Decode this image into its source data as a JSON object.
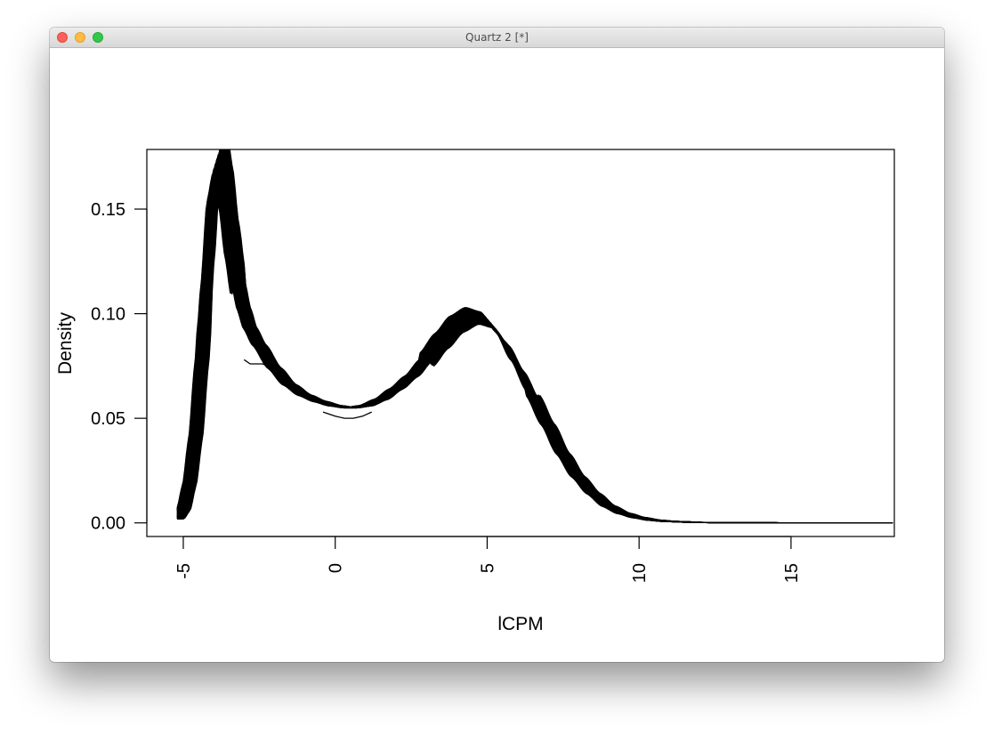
{
  "window": {
    "title": "Quartz 2 [*]",
    "buttons": [
      "close",
      "minimize",
      "zoom"
    ]
  },
  "chart_data": {
    "type": "line",
    "title": "",
    "xlabel": "lCPM",
    "ylabel": "Density",
    "xlim": [
      -6.2,
      18.4
    ],
    "ylim": [
      -0.0065,
      0.1785
    ],
    "x_ticks": [
      "-5",
      "0",
      "5",
      "10",
      "15"
    ],
    "y_ticks": [
      "0.00",
      "0.05",
      "0.10",
      "0.15"
    ],
    "x_tick_values": [
      -5,
      0,
      5,
      10,
      15
    ],
    "y_tick_values": [
      0,
      0.05,
      0.1,
      0.15
    ],
    "grid": false,
    "legend": "none",
    "series_count": 60,
    "line_color": "#000000",
    "x": [
      -5.2,
      -5.0,
      -4.8,
      -4.6,
      -4.4,
      -4.2,
      -4.0,
      -3.8,
      -3.6,
      -3.4,
      -3.2,
      -3.0,
      -2.8,
      -2.5,
      -2.0,
      -1.5,
      -1.0,
      -0.5,
      0.0,
      0.5,
      1.0,
      1.5,
      2.0,
      2.5,
      3.0,
      3.5,
      4.0,
      4.5,
      5.0,
      5.5,
      6.0,
      6.5,
      7.0,
      7.5,
      8.0,
      8.5,
      9.0,
      9.5,
      10.0,
      10.5,
      11.0,
      12.0,
      13.0,
      15.0,
      18.4
    ],
    "y": [
      0.002,
      0.006,
      0.018,
      0.04,
      0.075,
      0.12,
      0.163,
      0.178,
      0.16,
      0.135,
      0.115,
      0.102,
      0.093,
      0.085,
      0.074,
      0.066,
      0.061,
      0.058,
      0.056,
      0.055,
      0.056,
      0.059,
      0.064,
      0.07,
      0.078,
      0.087,
      0.095,
      0.099,
      0.097,
      0.088,
      0.075,
      0.061,
      0.047,
      0.033,
      0.022,
      0.014,
      0.008,
      0.0045,
      0.0025,
      0.0013,
      0.0007,
      0.0002,
      0.0001,
      0.0,
      0.0
    ],
    "outlier_series": [
      {
        "x": [
          -3.0,
          -2.8,
          -2.6,
          -2.4,
          -2.2
        ],
        "y": [
          0.078,
          0.076,
          0.076,
          0.076,
          0.075
        ]
      },
      {
        "x": [
          -0.4,
          0.0,
          0.3,
          0.6,
          0.9,
          1.2
        ],
        "y": [
          0.053,
          0.051,
          0.05,
          0.05,
          0.051,
          0.053
        ]
      }
    ]
  }
}
